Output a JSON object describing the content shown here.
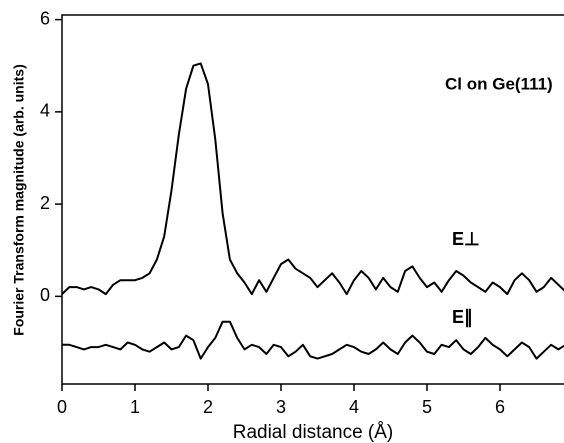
{
  "chart_data": {
    "type": "line",
    "annotation": "Cl on Ge(111)",
    "x_label": "Radial distance (Å)",
    "y_label": "Fourier Transform magnitude (arb. units)",
    "x": [
      0,
      0.1,
      0.2,
      0.3,
      0.4,
      0.5,
      0.6,
      0.7,
      0.8,
      0.9,
      1.0,
      1.1,
      1.2,
      1.3,
      1.4,
      1.5,
      1.6,
      1.7,
      1.8,
      1.9,
      2.0,
      2.1,
      2.2,
      2.3,
      2.4,
      2.5,
      2.6,
      2.7,
      2.8,
      2.9,
      3.0,
      3.1,
      3.2,
      3.3,
      3.4,
      3.5,
      3.6,
      3.7,
      3.8,
      3.9,
      4.0,
      4.1,
      4.2,
      4.3,
      4.4,
      4.5,
      4.6,
      4.7,
      4.8,
      4.9,
      5.0,
      5.1,
      5.2,
      5.3,
      5.4,
      5.5,
      5.6,
      5.7,
      5.8,
      5.9,
      6.0,
      6.1,
      6.2,
      6.3,
      6.4,
      6.5,
      6.6,
      6.7,
      6.8,
      6.9
    ],
    "series": [
      {
        "name": "E⊥",
        "color": "#000000",
        "values": [
          0.05,
          0.2,
          0.2,
          0.15,
          0.2,
          0.15,
          0.05,
          0.25,
          0.35,
          0.35,
          0.35,
          0.4,
          0.5,
          0.8,
          1.3,
          2.3,
          3.5,
          4.5,
          5.0,
          5.05,
          4.6,
          3.4,
          1.8,
          0.8,
          0.5,
          0.3,
          0.05,
          0.35,
          0.1,
          0.4,
          0.7,
          0.8,
          0.6,
          0.5,
          0.4,
          0.2,
          0.35,
          0.5,
          0.3,
          0.05,
          0.35,
          0.55,
          0.4,
          0.15,
          0.4,
          0.2,
          0.1,
          0.55,
          0.65,
          0.4,
          0.2,
          0.3,
          0.1,
          0.35,
          0.55,
          0.45,
          0.3,
          0.2,
          0.1,
          0.3,
          0.2,
          0.05,
          0.35,
          0.5,
          0.35,
          0.1,
          0.2,
          0.4,
          0.25,
          0.1
        ]
      },
      {
        "name": "E∥",
        "color": "#000000",
        "values": [
          -1.05,
          -1.05,
          -1.1,
          -1.15,
          -1.1,
          -1.1,
          -1.05,
          -1.1,
          -1.15,
          -1.0,
          -1.05,
          -1.15,
          -1.2,
          -1.1,
          -1.0,
          -1.15,
          -1.1,
          -0.85,
          -0.95,
          -1.35,
          -1.1,
          -0.9,
          -0.55,
          -0.55,
          -0.9,
          -1.15,
          -1.05,
          -1.1,
          -1.25,
          -1.05,
          -1.1,
          -1.3,
          -1.2,
          -1.05,
          -1.3,
          -1.35,
          -1.3,
          -1.25,
          -1.15,
          -1.05,
          -1.1,
          -1.2,
          -1.25,
          -1.15,
          -1.0,
          -1.15,
          -1.25,
          -1.0,
          -0.85,
          -1.0,
          -1.2,
          -1.25,
          -1.05,
          -1.1,
          -0.95,
          -1.15,
          -1.25,
          -1.1,
          -0.9,
          -1.05,
          -1.15,
          -1.3,
          -1.15,
          -1.0,
          -1.1,
          -1.35,
          -1.2,
          -1.05,
          -1.15,
          -1.05
        ]
      }
    ],
    "xlim": [
      0,
      6.9
    ],
    "xticks": [
      0,
      1,
      2,
      3,
      4,
      5,
      6
    ],
    "ylim": [
      -1.9,
      6.1
    ],
    "yticks": [
      0,
      2,
      4,
      6
    ]
  }
}
